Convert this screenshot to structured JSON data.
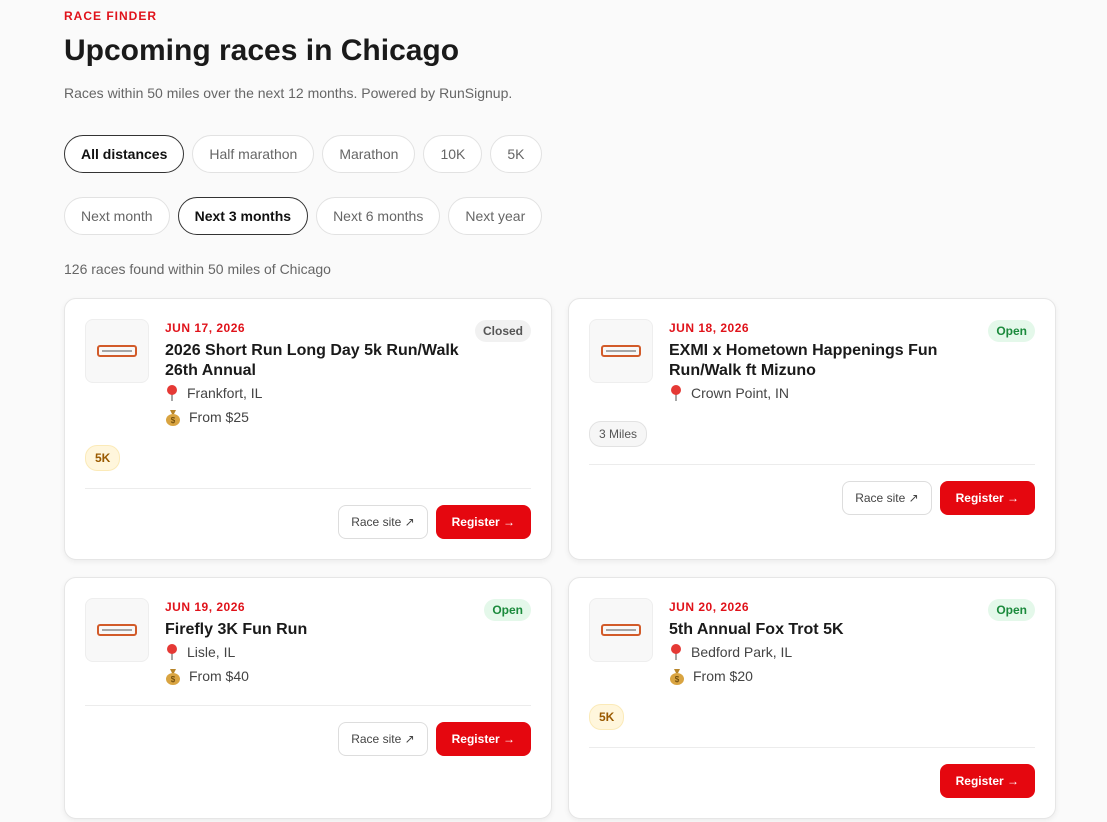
{
  "header": {
    "eyebrow": "RACE FINDER",
    "title": "Upcoming races in Chicago",
    "subtitle": "Races within 50 miles over the next 12 months. Powered by RunSignup."
  },
  "distance_filters": [
    {
      "label": "All distances",
      "active": true
    },
    {
      "label": "Half marathon",
      "active": false
    },
    {
      "label": "Marathon",
      "active": false
    },
    {
      "label": "10K",
      "active": false
    },
    {
      "label": "5K",
      "active": false
    }
  ],
  "time_filters": [
    {
      "label": "Next month",
      "active": false
    },
    {
      "label": "Next 3 months",
      "active": true
    },
    {
      "label": "Next 6 months",
      "active": false
    },
    {
      "label": "Next year",
      "active": false
    }
  ],
  "result_count": "126 races found within 50 miles of Chicago",
  "races": [
    {
      "date": "JUN 17, 2026",
      "name": "2026 Short Run Long Day 5k Run/Walk 26th Annual",
      "status": "Closed",
      "location": "Frankfort, IL",
      "price": "From $25",
      "tags": [
        "5K"
      ],
      "race_site": "Race site ↗",
      "register": "Register →"
    },
    {
      "date": "JUN 18, 2026",
      "name": "EXMI x Hometown Happenings Fun Run/Walk ft Mizuno",
      "status": "Open",
      "location": "Crown Point, IN",
      "tags": [
        "3 Miles"
      ],
      "race_site": "Race site ↗",
      "register": "Register →"
    },
    {
      "date": "JUN 19, 2026",
      "name": "Firefly 3K Fun Run",
      "status": "Open",
      "location": "Lisle, IL",
      "price": "From $40",
      "tags": [],
      "race_site": "Race site ↗",
      "register": "Register →"
    },
    {
      "date": "JUN 20, 2026",
      "name": "5th Annual Fox Trot 5K",
      "status": "Open",
      "location": "Bedford Park, IL",
      "price": "From $20",
      "tags": [
        "5K"
      ],
      "register": "Register →"
    }
  ]
}
